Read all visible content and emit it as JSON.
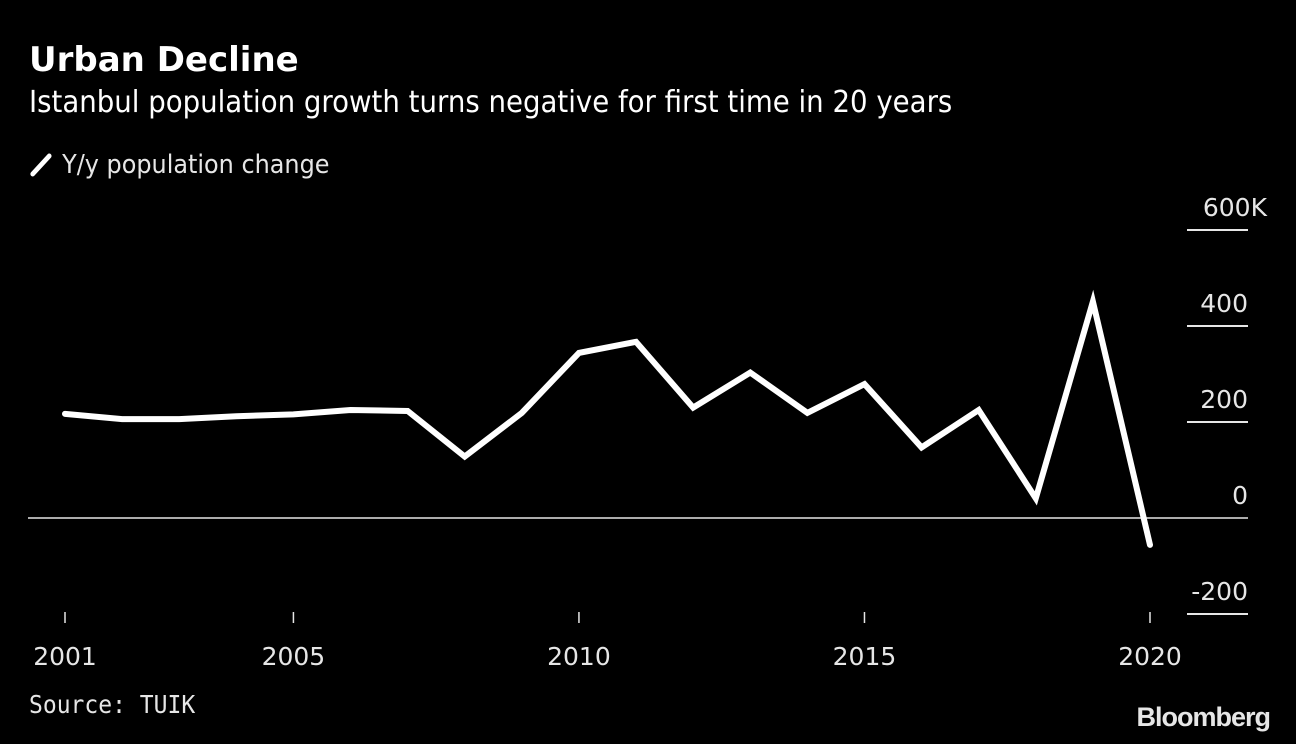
{
  "header": {
    "title": "Urban Decline",
    "subtitle": "Istanbul population growth turns negative for first time in 20 years"
  },
  "legend": {
    "icon": "line-swatch-icon",
    "label": "Y/y population change",
    "color": "#ffffff"
  },
  "footer": {
    "source": "Source: TUIK",
    "logo": "Bloomberg"
  },
  "colors": {
    "background": "#000000",
    "line": "#ffffff",
    "grid": "#e6e6e6",
    "text": "#e6e6e6"
  },
  "chart_data": {
    "type": "line",
    "title": "Urban Decline",
    "subtitle": "Istanbul population growth turns negative for first time in 20 years",
    "xlabel": "",
    "ylabel": "",
    "x": [
      2001,
      2002,
      2003,
      2004,
      2005,
      2006,
      2007,
      2008,
      2009,
      2010,
      2011,
      2012,
      2013,
      2014,
      2015,
      2016,
      2017,
      2018,
      2019,
      2020
    ],
    "series": [
      {
        "name": "Y/y population change",
        "unit": "thousands",
        "values": [
          217,
          206,
          206,
          212,
          216,
          225,
          223,
          128,
          219,
          344,
          367,
          230,
          303,
          219,
          279,
          147,
          225,
          41,
          451,
          -56
        ]
      }
    ],
    "xlim": [
      2001,
      2020
    ],
    "ylim": [
      -200,
      600
    ],
    "x_ticks": [
      2001,
      2005,
      2010,
      2015,
      2020
    ],
    "x_tick_labels": [
      "2001",
      "2005",
      "2010",
      "2015",
      "2020"
    ],
    "y_ticks": [
      600,
      400,
      200,
      0,
      -200
    ],
    "y_tick_labels": [
      "600K",
      "400",
      "200",
      "0",
      "-200"
    ],
    "y_axis_position": "right",
    "grid": true,
    "legend_position": "top-left",
    "source": "Source: TUIK"
  }
}
